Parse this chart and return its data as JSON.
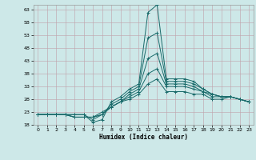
{
  "title": "",
  "xlabel": "Humidex (Indice chaleur)",
  "background_color": "#cde8e8",
  "line_color": "#1a6b6b",
  "xlim": [
    -0.5,
    23.5
  ],
  "ylim": [
    18,
    65
  ],
  "yticks": [
    18,
    23,
    28,
    33,
    38,
    43,
    48,
    53,
    58,
    63
  ],
  "xticks": [
    0,
    1,
    2,
    3,
    4,
    5,
    6,
    7,
    8,
    9,
    10,
    11,
    12,
    13,
    14,
    15,
    16,
    17,
    18,
    19,
    20,
    21,
    22,
    23
  ],
  "lines": [
    [
      22,
      22,
      22,
      22,
      22,
      22,
      19,
      20,
      27,
      29,
      32,
      34,
      62,
      65,
      36,
      36,
      36,
      35,
      32,
      30,
      29,
      29,
      28,
      27
    ],
    [
      22,
      22,
      22,
      22,
      22,
      22,
      20,
      22,
      26,
      28,
      31,
      33,
      52,
      54,
      35,
      35,
      35,
      34,
      32,
      30,
      29,
      29,
      28,
      27
    ],
    [
      22,
      22,
      22,
      22,
      21,
      21,
      21,
      22,
      25,
      27,
      30,
      32,
      44,
      46,
      34,
      34,
      34,
      33,
      31,
      30,
      29,
      29,
      28,
      27
    ],
    [
      22,
      22,
      22,
      22,
      21,
      21,
      21,
      22,
      25,
      27,
      29,
      31,
      38,
      40,
      33,
      33,
      33,
      32,
      31,
      29,
      29,
      29,
      28,
      27
    ],
    [
      22,
      22,
      22,
      22,
      21,
      21,
      21,
      23,
      25,
      27,
      28,
      30,
      34,
      36,
      31,
      31,
      31,
      30,
      30,
      28,
      28,
      29,
      28,
      27
    ]
  ],
  "x_values": [
    0,
    1,
    2,
    3,
    4,
    5,
    6,
    7,
    8,
    9,
    10,
    11,
    12,
    13,
    14,
    15,
    16,
    17,
    18,
    19,
    20,
    21,
    22,
    23
  ]
}
